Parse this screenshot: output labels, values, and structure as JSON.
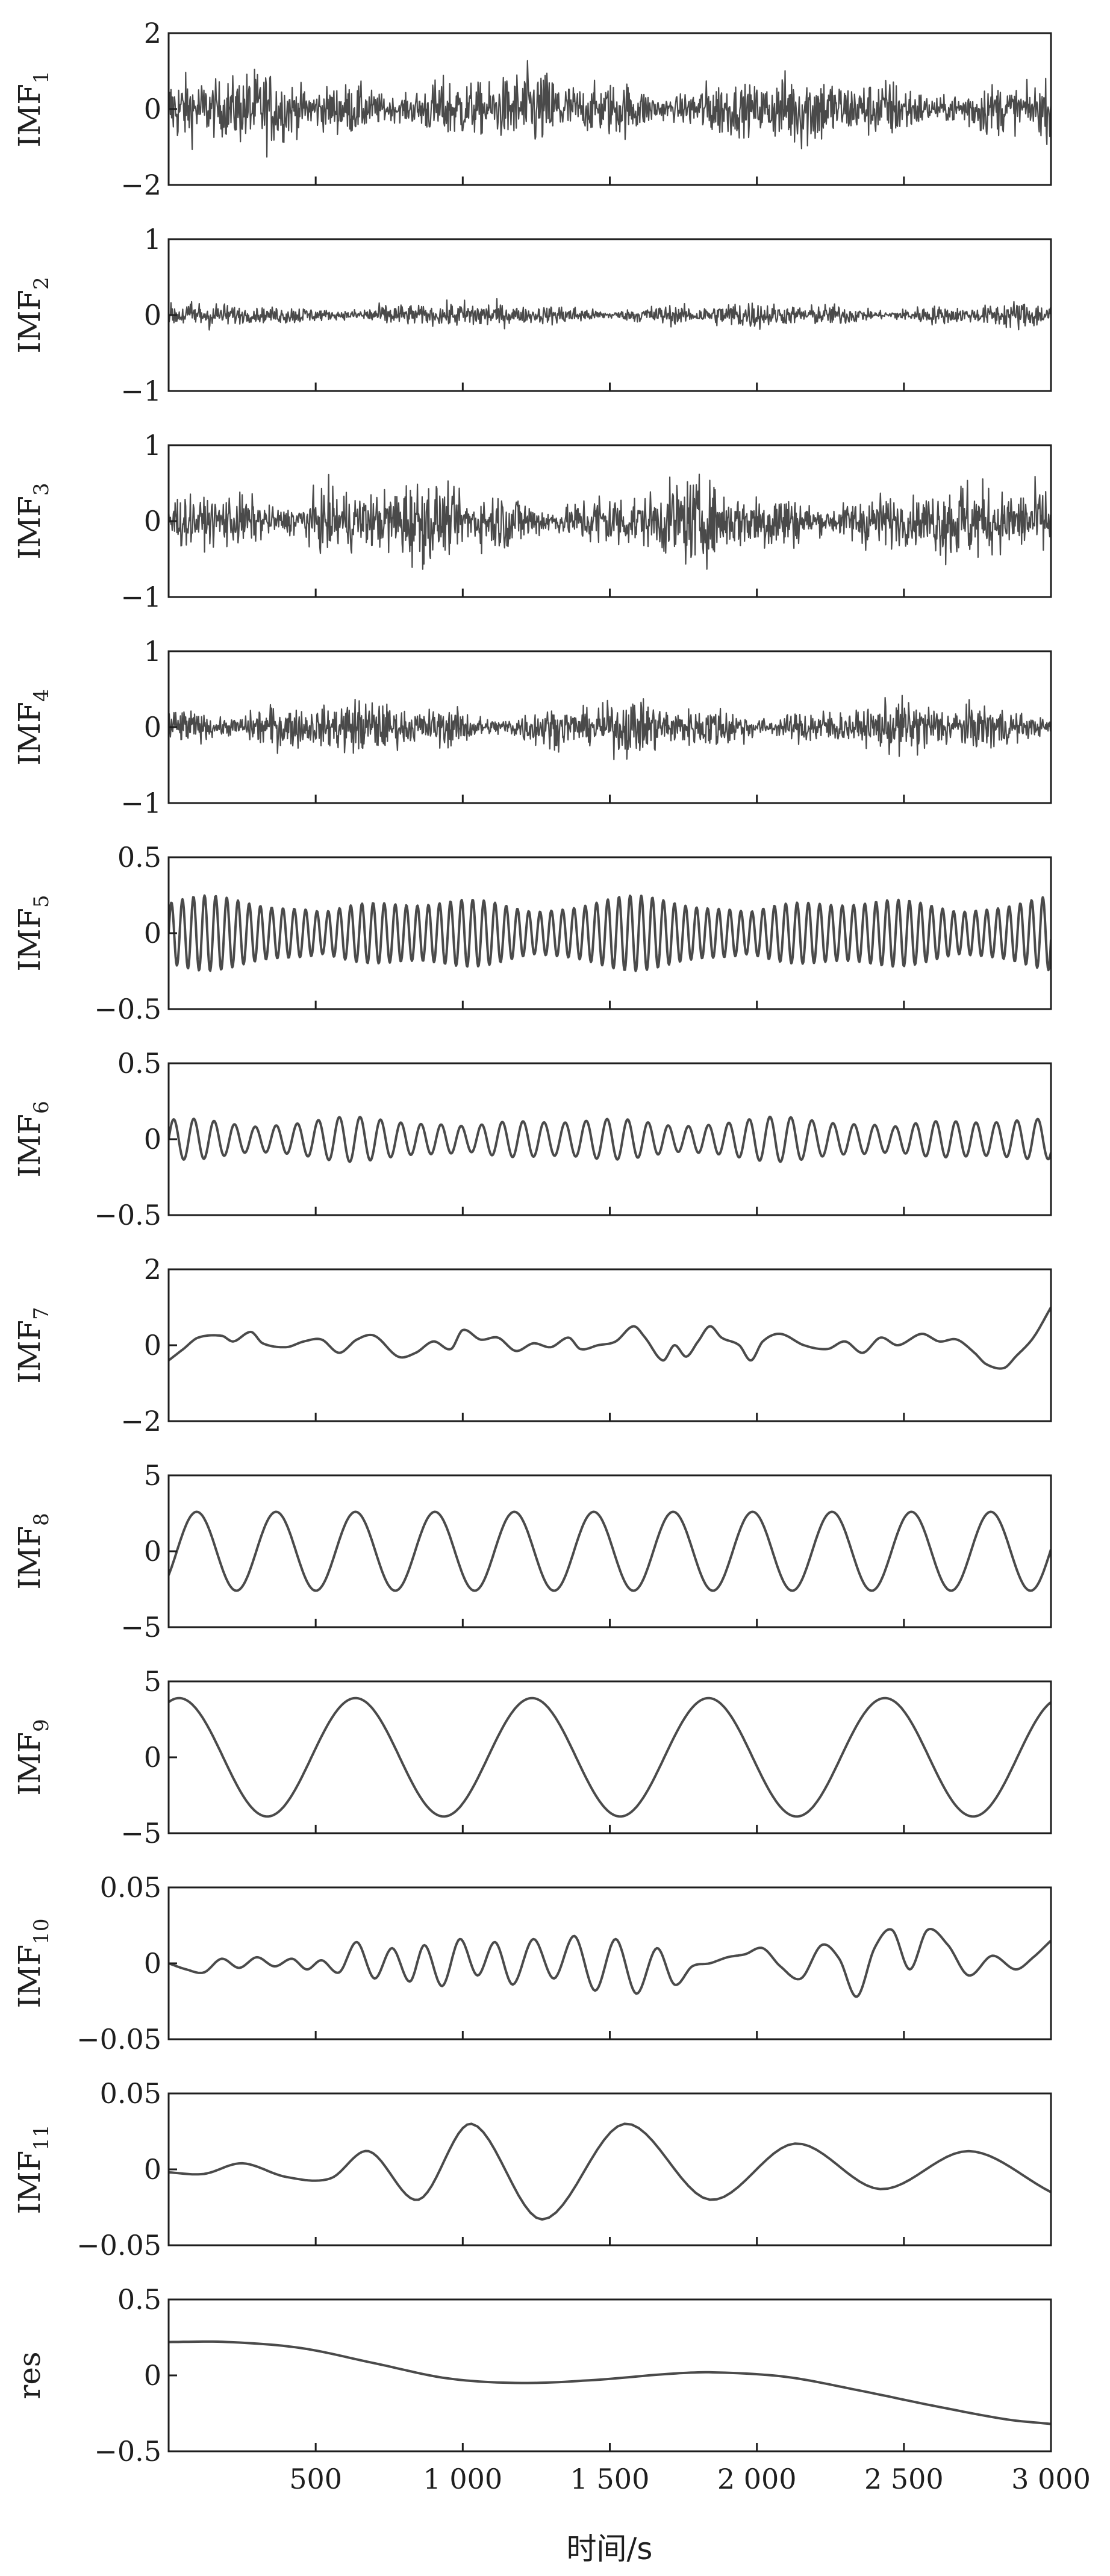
{
  "chart_data": {
    "type": "line",
    "xlabel": "时间/s",
    "xlim": [
      0,
      3000
    ],
    "xticks": [
      500,
      1000,
      1500,
      2000,
      2500,
      3000
    ],
    "xtick_labels": [
      "500",
      "1 000",
      "1 500",
      "2 000",
      "2 500",
      "3 000"
    ],
    "line_color": "#4a4a4a",
    "panels": [
      {
        "ylabel_base": "IMF",
        "ylabel_sub": "1",
        "ylim": [
          -2,
          2
        ],
        "yticks": [
          2,
          0,
          -2
        ],
        "ytick_labels": [
          "2",
          "0",
          "−2"
        ],
        "signal": "noise",
        "amplitude": 0.85
      },
      {
        "ylabel_base": "IMF",
        "ylabel_sub": "2",
        "ylim": [
          -1,
          1
        ],
        "yticks": [
          1,
          0,
          -1
        ],
        "ytick_labels": [
          "1",
          "0",
          "−1"
        ],
        "signal": "noise",
        "amplitude": 0.15
      },
      {
        "ylabel_base": "IMF",
        "ylabel_sub": "3",
        "ylim": [
          -1,
          1
        ],
        "yticks": [
          1,
          0,
          -1
        ],
        "ytick_labels": [
          "1",
          "0",
          "−1"
        ],
        "signal": "noise",
        "amplitude": 0.45
      },
      {
        "ylabel_base": "IMF",
        "ylabel_sub": "4",
        "ylim": [
          -1,
          1
        ],
        "yticks": [
          1,
          0,
          -1
        ],
        "ytick_labels": [
          "1",
          "0",
          "−1"
        ],
        "signal": "noise",
        "amplitude": 0.3
      },
      {
        "ylabel_base": "IMF",
        "ylabel_sub": "5",
        "ylim": [
          -0.5,
          0.5
        ],
        "yticks": [
          0.5,
          0,
          -0.5
        ],
        "ytick_labels": [
          "0.5",
          "0",
          "−0.5"
        ],
        "signal": "oscillation",
        "amplitude": 0.25,
        "period": 38
      },
      {
        "ylabel_base": "IMF",
        "ylabel_sub": "6",
        "ylim": [
          -0.5,
          0.5
        ],
        "yticks": [
          0.5,
          0,
          -0.5
        ],
        "ytick_labels": [
          "0.5",
          "0",
          "−0.5"
        ],
        "signal": "oscillation",
        "amplitude": 0.15,
        "period": 70
      },
      {
        "ylabel_base": "IMF",
        "ylabel_sub": "7",
        "ylim": [
          -2,
          2
        ],
        "yticks": [
          2,
          0,
          -2
        ],
        "ytick_labels": [
          "2",
          "0",
          "−2"
        ],
        "signal": "points",
        "points": [
          [
            0,
            -0.4
          ],
          [
            50,
            -0.1
          ],
          [
            100,
            0.2
          ],
          [
            180,
            0.25
          ],
          [
            220,
            0.1
          ],
          [
            280,
            0.35
          ],
          [
            320,
            0.05
          ],
          [
            400,
            -0.05
          ],
          [
            460,
            0.1
          ],
          [
            520,
            0.15
          ],
          [
            580,
            -0.2
          ],
          [
            640,
            0.15
          ],
          [
            700,
            0.25
          ],
          [
            780,
            -0.3
          ],
          [
            840,
            -0.2
          ],
          [
            900,
            0.1
          ],
          [
            960,
            -0.1
          ],
          [
            1000,
            0.4
          ],
          [
            1060,
            0.15
          ],
          [
            1120,
            0.2
          ],
          [
            1180,
            -0.15
          ],
          [
            1240,
            0.05
          ],
          [
            1300,
            -0.05
          ],
          [
            1360,
            0.2
          ],
          [
            1400,
            -0.1
          ],
          [
            1460,
            0.0
          ],
          [
            1520,
            0.1
          ],
          [
            1580,
            0.5
          ],
          [
            1620,
            0.2
          ],
          [
            1680,
            -0.4
          ],
          [
            1720,
            0.0
          ],
          [
            1760,
            -0.3
          ],
          [
            1800,
            0.1
          ],
          [
            1840,
            0.5
          ],
          [
            1880,
            0.2
          ],
          [
            1940,
            0.0
          ],
          [
            1980,
            -0.4
          ],
          [
            2020,
            0.1
          ],
          [
            2080,
            0.3
          ],
          [
            2160,
            0.0
          ],
          [
            2240,
            -0.1
          ],
          [
            2300,
            0.1
          ],
          [
            2360,
            -0.2
          ],
          [
            2420,
            0.2
          ],
          [
            2480,
            0.0
          ],
          [
            2560,
            0.3
          ],
          [
            2620,
            0.1
          ],
          [
            2680,
            0.15
          ],
          [
            2740,
            -0.2
          ],
          [
            2780,
            -0.5
          ],
          [
            2840,
            -0.6
          ],
          [
            2880,
            -0.3
          ],
          [
            2940,
            0.2
          ],
          [
            3000,
            1.0
          ]
        ]
      },
      {
        "ylabel_base": "IMF",
        "ylabel_sub": "8",
        "ylim": [
          -5,
          5
        ],
        "yticks": [
          5,
          0,
          -5
        ],
        "ytick_labels": [
          "5",
          "0",
          "−5"
        ],
        "signal": "sine",
        "amplitude": 2.6,
        "period": 270,
        "phase": -0.65
      },
      {
        "ylabel_base": "IMF",
        "ylabel_sub": "9",
        "ylim": [
          -5,
          5
        ],
        "yticks": [
          5,
          0,
          -5
        ],
        "ytick_labels": [
          "5",
          "0",
          "−5"
        ],
        "signal": "sine",
        "amplitude": 3.9,
        "period": 600,
        "phase": 1.2
      },
      {
        "ylabel_base": "IMF",
        "ylabel_sub": "10",
        "ylim": [
          -0.05,
          0.05
        ],
        "yticks": [
          0.05,
          0,
          -0.05
        ],
        "ytick_labels": [
          "0.05",
          "0",
          "−0.05"
        ],
        "signal": "points",
        "points": [
          [
            0,
            0.0
          ],
          [
            60,
            -0.004
          ],
          [
            120,
            -0.006
          ],
          [
            180,
            0.003
          ],
          [
            240,
            -0.003
          ],
          [
            300,
            0.004
          ],
          [
            360,
            -0.002
          ],
          [
            420,
            0.003
          ],
          [
            470,
            -0.004
          ],
          [
            520,
            0.002
          ],
          [
            580,
            -0.006
          ],
          [
            640,
            0.014
          ],
          [
            700,
            -0.01
          ],
          [
            760,
            0.01
          ],
          [
            820,
            -0.012
          ],
          [
            870,
            0.012
          ],
          [
            930,
            -0.015
          ],
          [
            990,
            0.016
          ],
          [
            1050,
            -0.008
          ],
          [
            1110,
            0.014
          ],
          [
            1170,
            -0.014
          ],
          [
            1240,
            0.016
          ],
          [
            1310,
            -0.01
          ],
          [
            1380,
            0.018
          ],
          [
            1450,
            -0.018
          ],
          [
            1520,
            0.016
          ],
          [
            1590,
            -0.02
          ],
          [
            1660,
            0.01
          ],
          [
            1720,
            -0.014
          ],
          [
            1780,
            -0.002
          ],
          [
            1840,
            0.0
          ],
          [
            1900,
            0.004
          ],
          [
            1960,
            0.006
          ],
          [
            2020,
            0.01
          ],
          [
            2080,
            -0.002
          ],
          [
            2150,
            -0.01
          ],
          [
            2220,
            0.012
          ],
          [
            2280,
            0.003
          ],
          [
            2340,
            -0.022
          ],
          [
            2400,
            0.01
          ],
          [
            2460,
            0.022
          ],
          [
            2520,
            -0.004
          ],
          [
            2580,
            0.022
          ],
          [
            2650,
            0.012
          ],
          [
            2720,
            -0.008
          ],
          [
            2800,
            0.005
          ],
          [
            2880,
            -0.004
          ],
          [
            2940,
            0.004
          ],
          [
            3000,
            0.015
          ]
        ]
      },
      {
        "ylabel_base": "IMF",
        "ylabel_sub": "11",
        "ylim": [
          -0.05,
          0.05
        ],
        "yticks": [
          0.05,
          0,
          -0.05
        ],
        "ytick_labels": [
          "0.05",
          "0",
          "−0.05"
        ],
        "signal": "points",
        "points": [
          [
            0,
            -0.002
          ],
          [
            120,
            -0.003
          ],
          [
            250,
            0.004
          ],
          [
            400,
            -0.005
          ],
          [
            550,
            -0.006
          ],
          [
            680,
            0.012
          ],
          [
            850,
            -0.02
          ],
          [
            1030,
            0.03
          ],
          [
            1270,
            -0.033
          ],
          [
            1550,
            0.03
          ],
          [
            1840,
            -0.02
          ],
          [
            2130,
            0.017
          ],
          [
            2420,
            -0.013
          ],
          [
            2720,
            0.012
          ],
          [
            3000,
            -0.015
          ]
        ]
      },
      {
        "ylabel_base": "res",
        "ylabel_sub": "",
        "ylim": [
          -0.5,
          0.5
        ],
        "yticks": [
          0.5,
          0,
          -0.5
        ],
        "ytick_labels": [
          "0.5",
          "0",
          "−0.5"
        ],
        "signal": "points",
        "points": [
          [
            0,
            0.22
          ],
          [
            200,
            0.22
          ],
          [
            450,
            0.18
          ],
          [
            700,
            0.08
          ],
          [
            950,
            -0.02
          ],
          [
            1200,
            -0.05
          ],
          [
            1450,
            -0.03
          ],
          [
            1700,
            0.01
          ],
          [
            1850,
            0.02
          ],
          [
            2100,
            -0.01
          ],
          [
            2350,
            -0.1
          ],
          [
            2600,
            -0.2
          ],
          [
            2850,
            -0.29
          ],
          [
            3000,
            -0.32
          ]
        ]
      }
    ]
  }
}
